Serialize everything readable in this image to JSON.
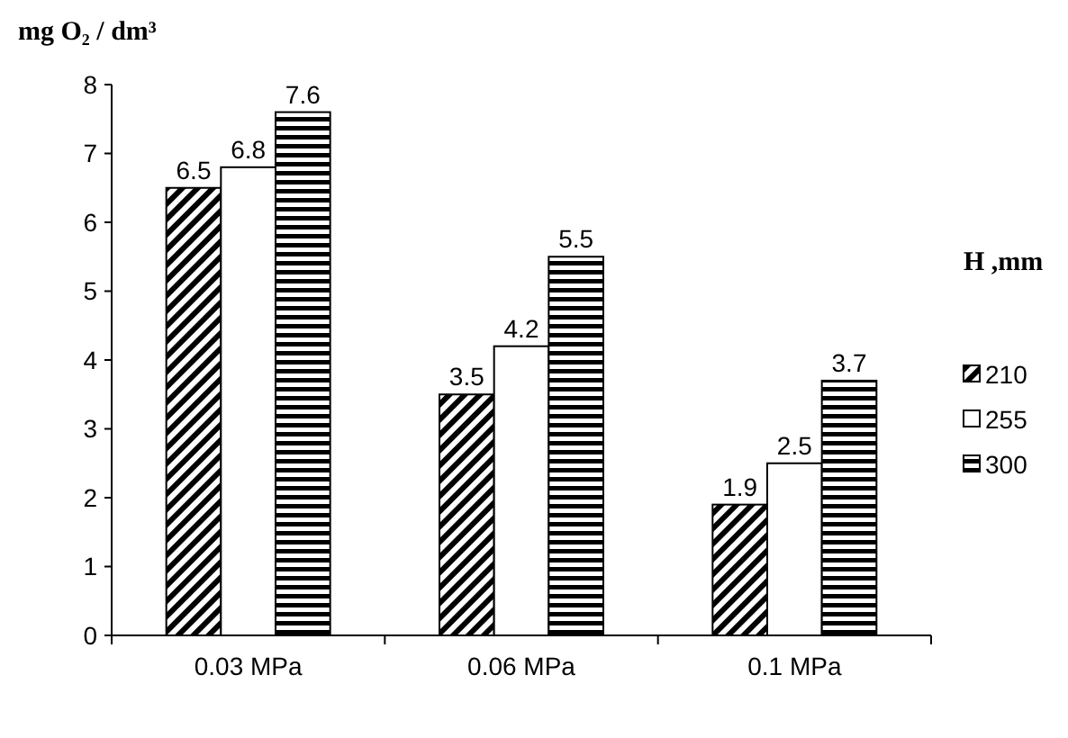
{
  "chart_data": {
    "type": "bar",
    "ylabel": "mg O₂ / dm³",
    "legend_title": "H ,mm",
    "categories": [
      "0.03 MPa",
      "0.06 MPa",
      "0.1 MPa"
    ],
    "series": [
      {
        "name": "210",
        "color": "#000000",
        "values": [
          6.5,
          3.5,
          1.9
        ]
      },
      {
        "name": "255",
        "color": "#ffffff",
        "values": [
          6.8,
          4.2,
          2.5
        ]
      },
      {
        "name": "300",
        "color": "#000000",
        "values": [
          7.6,
          5.5,
          3.7
        ]
      }
    ],
    "ylim": [
      0,
      8
    ],
    "yticks": [
      0,
      1,
      2,
      3,
      4,
      5,
      6,
      7,
      8
    ],
    "grid": false,
    "legend": "right",
    "data_labels": true
  }
}
